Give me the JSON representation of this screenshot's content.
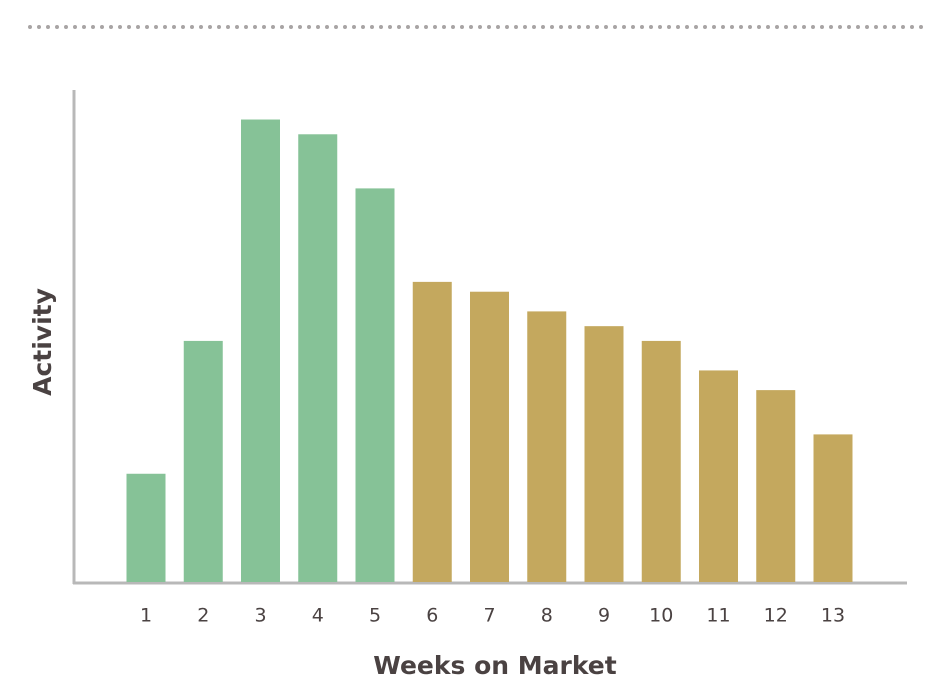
{
  "chart_data": {
    "type": "bar",
    "x_label": "Weeks on Market",
    "y_label": "Activity",
    "categories": [
      "1",
      "2",
      "3",
      "4",
      "5",
      "6",
      "7",
      "8",
      "9",
      "10",
      "11",
      "12",
      "13"
    ],
    "values": [
      22,
      49,
      94,
      91,
      80,
      61,
      59,
      55,
      52,
      49,
      43,
      39,
      30
    ],
    "colors": [
      "#86c297",
      "#86c297",
      "#86c297",
      "#86c297",
      "#86c297",
      "#c4a85e",
      "#c4a85e",
      "#c4a85e",
      "#c4a85e",
      "#c4a85e",
      "#c4a85e",
      "#c4a85e",
      "#c4a85e"
    ],
    "ylim": [
      0,
      100
    ]
  }
}
